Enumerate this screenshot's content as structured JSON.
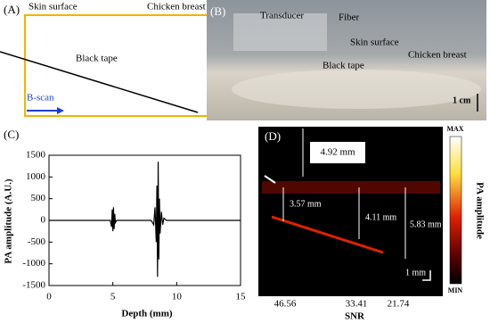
{
  "figure": {
    "a": {
      "label": "(A)",
      "skin_surface": "Skin surface",
      "chicken_breast": "Chicken breast",
      "black_tape": "Black tape",
      "bscan": "B-scan"
    },
    "b": {
      "label": "(B)",
      "transducer": "Transducer",
      "fiber": "Fiber",
      "skin_surface": "Skin surface",
      "black_tape": "Black tape",
      "chicken_breast": "Chicken breast",
      "scale": "1 cm"
    },
    "d": {
      "label": "(D)",
      "depth_top": "4.92 mm",
      "depth_1": "3.57 mm",
      "depth_2": "4.11 mm",
      "depth_3": "5.83 mm",
      "scale": "1 mm",
      "cbar_max": "MAX",
      "cbar_min": "MIN",
      "cbar_label": "PA amplitude",
      "snr_1": "46.56",
      "snr_2": "33.41",
      "snr_3": "21.74",
      "snr_label": "SNR"
    }
  },
  "chart_data": {
    "type": "line",
    "panel_label": "(C)",
    "xlabel": "Depth (mm)",
    "ylabel": "PA amplitude (A.U.)",
    "x": [
      0,
      4.8,
      4.9,
      4.95,
      5.0,
      5.05,
      5.1,
      5.15,
      5.2,
      5.3,
      8.0,
      8.2,
      8.3,
      8.4,
      8.45,
      8.5,
      8.55,
      8.6,
      8.65,
      8.7,
      8.8,
      8.9,
      9.0,
      9.2,
      15
    ],
    "values": [
      0,
      0,
      -150,
      250,
      -250,
      300,
      -200,
      150,
      -50,
      0,
      0,
      -100,
      300,
      -500,
      800,
      -1300,
      1350,
      -900,
      500,
      -300,
      200,
      -100,
      50,
      0,
      0
    ],
    "color": "#000000",
    "xlim": [
      0,
      15
    ],
    "xticks": [
      0,
      5,
      10,
      15
    ],
    "ylim": [
      -1500,
      1500
    ],
    "yticks": [
      -1500,
      -1000,
      -500,
      0,
      500,
      1000,
      1500
    ]
  }
}
